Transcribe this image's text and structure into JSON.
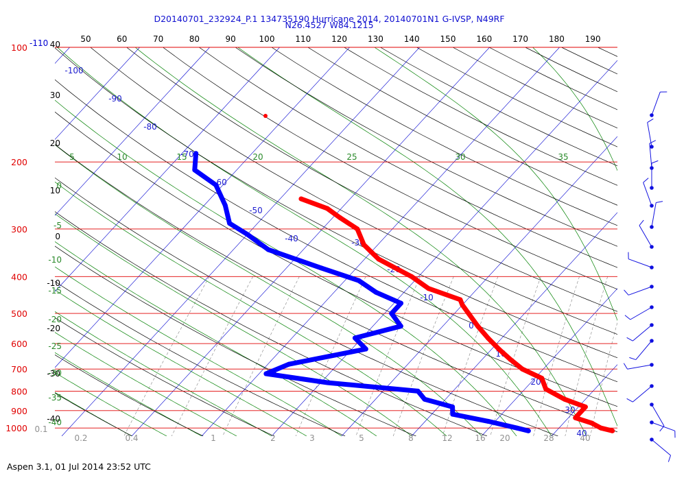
{
  "header": {
    "title_line1": "D20140701_232924_P.1 134735190 Hurricane 2014, 20140701N1 G-IVSP, N49RF",
    "title_line2": "N26.4527 W84.1215"
  },
  "footer": {
    "text": "Aspen 3.1, 01 Jul 2014  23:52 UTC"
  },
  "colors": {
    "isobar": "#e00000",
    "isotherm": "#0000d0",
    "dry_adiabat": "#000000",
    "moist_adiabat": "#008000",
    "mixing_ratio": "#808080",
    "temperature": "#ff0000",
    "dewpoint": "#0000ff"
  },
  "chart_data": {
    "type": "line",
    "diagram": "skew-T log-P",
    "title": "D20140701_232924_P.1 134735190 Hurricane 2014, 20140701N1 G-IVSP, N49RF",
    "subtitle": "N26.4527 W84.1215",
    "pressure_labels": [
      "100",
      "200",
      "300",
      "400",
      "500",
      "600",
      "700",
      "800",
      "900",
      "1000"
    ],
    "pressure_levels": [
      100,
      200,
      300,
      400,
      500,
      600,
      700,
      800,
      900,
      1000
    ],
    "top_labels": [
      "50",
      "60",
      "70",
      "80",
      "90",
      "100",
      "110",
      "120",
      "130",
      "140",
      "150",
      "160",
      "170",
      "180",
      "190"
    ],
    "left_labels": [
      "-110",
      "40",
      "30",
      "20",
      "10",
      "0",
      "-10",
      "-20",
      "-30",
      "-40"
    ],
    "isotherm_labels": [
      "-100",
      "-90",
      "-80",
      "-70",
      "-60",
      "-50",
      "-40",
      "-30",
      "-20",
      "-10",
      "0",
      "10",
      "20",
      "30",
      "40"
    ],
    "theta_e_labels": [
      "5",
      "10",
      "15",
      "20",
      "25",
      "30",
      "35"
    ],
    "left_moist_labels": [
      "0",
      "-5",
      "-10",
      "-15",
      "-20",
      "-25",
      "-30",
      "-35",
      "-40"
    ],
    "mixing_ratio_labels": [
      "0.1",
      "0.2",
      "0.4",
      "1",
      "2",
      "3",
      "5",
      "8",
      "12",
      "16",
      "20"
    ],
    "bottom_right_labels": [
      "28",
      "40"
    ],
    "series": [
      {
        "key": "temperature",
        "pressure": [
          250,
          265,
          280,
          300,
          330,
          360,
          400,
          430,
          460,
          475,
          500,
          540,
          580,
          620,
          660,
          700,
          740,
          790,
          840,
          880,
          940,
          970,
          1000,
          1017
        ],
        "value": [
          -47,
          -42,
          -39,
          -35,
          -32,
          -28,
          -21,
          -17,
          -11,
          -10,
          -8,
          -5,
          -2,
          1,
          4,
          7,
          11,
          13,
          17,
          21,
          21,
          24,
          26,
          28
        ]
      },
      {
        "key": "dewpoint",
        "pressure": [
          190,
          210,
          230,
          260,
          290,
          310,
          340,
          380,
          410,
          440,
          470,
          500,
          540,
          580,
          620,
          680,
          720,
          760,
          800,
          840,
          880,
          920,
          960,
          1000,
          1017
        ],
        "value": [
          -68,
          -66,
          -61,
          -57,
          -54,
          -50,
          -45,
          -35,
          -28,
          -24,
          -19,
          -19,
          -16,
          -21,
          -18,
          -27,
          -29,
          -19,
          -5,
          -3,
          2,
          3,
          9,
          14,
          16
        ]
      }
    ],
    "wind_barbs_count": 19
  }
}
